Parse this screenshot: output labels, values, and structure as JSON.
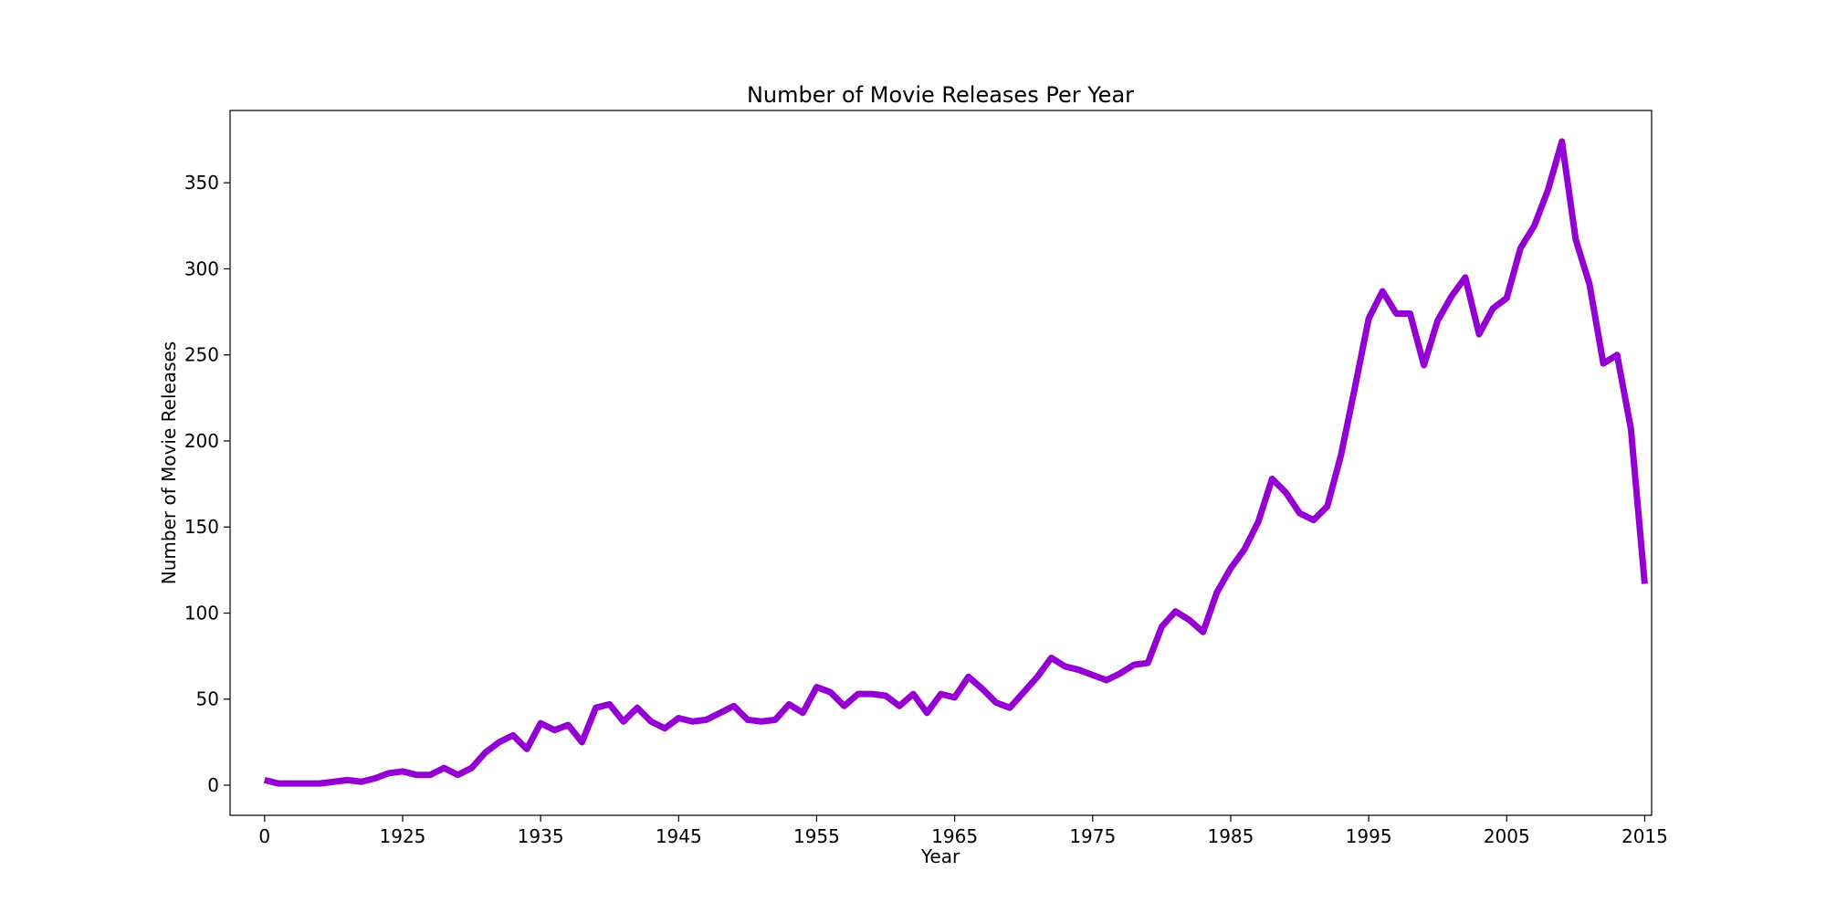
{
  "chart_data": {
    "type": "line",
    "title": "Number of Movie Releases Per Year",
    "xlabel": "Year",
    "ylabel": "Number of Movie Releases",
    "x_tick_labels": [
      "0",
      "1925",
      "1935",
      "1945",
      "1955",
      "1965",
      "1975",
      "1985",
      "1995",
      "2005",
      "2015"
    ],
    "y_ticks": [
      0,
      50,
      100,
      150,
      200,
      250,
      300,
      350
    ],
    "ylim": [
      -17.5,
      392
    ],
    "grid": false,
    "legend": "none",
    "series": [
      {
        "color": "#9400d3",
        "x": [
          1915,
          1916,
          1917,
          1918,
          1919,
          1920,
          1921,
          1922,
          1923,
          1924,
          1925,
          1926,
          1927,
          1928,
          1929,
          1930,
          1931,
          1932,
          1933,
          1934,
          1935,
          1936,
          1937,
          1938,
          1939,
          1940,
          1941,
          1942,
          1943,
          1944,
          1945,
          1946,
          1947,
          1948,
          1949,
          1950,
          1951,
          1952,
          1953,
          1954,
          1955,
          1956,
          1957,
          1958,
          1959,
          1960,
          1961,
          1962,
          1963,
          1964,
          1965,
          1966,
          1967,
          1968,
          1969,
          1970,
          1971,
          1972,
          1973,
          1974,
          1975,
          1976,
          1977,
          1978,
          1979,
          1980,
          1981,
          1982,
          1983,
          1984,
          1985,
          1986,
          1987,
          1988,
          1989,
          1990,
          1991,
          1992,
          1993,
          1994,
          1995,
          1996,
          1997,
          1998,
          1999,
          2000,
          2001,
          2002,
          2003,
          2004,
          2005,
          2006,
          2007,
          2008,
          2009,
          2010,
          2011,
          2012,
          2013,
          2014,
          2015
        ],
        "y": [
          3,
          1,
          1,
          1,
          1,
          2,
          3,
          2,
          4,
          7,
          8,
          6,
          6,
          10,
          6,
          10,
          19,
          25,
          29,
          21,
          36,
          32,
          35,
          25,
          45,
          47,
          37,
          45,
          37,
          33,
          39,
          37,
          38,
          42,
          46,
          38,
          37,
          38,
          47,
          42,
          57,
          54,
          46,
          53,
          53,
          52,
          46,
          53,
          42,
          53,
          51,
          63,
          56,
          48,
          45,
          54,
          63,
          74,
          69,
          67,
          64,
          61,
          65,
          70,
          71,
          92,
          101,
          96,
          89,
          112,
          126,
          137,
          153,
          178,
          170,
          158,
          154,
          162,
          192,
          231,
          271,
          287,
          274,
          274,
          244,
          270,
          284,
          295,
          262,
          277,
          283,
          312,
          325,
          346,
          374,
          317,
          291,
          245,
          250,
          207,
          117
        ]
      }
    ]
  }
}
